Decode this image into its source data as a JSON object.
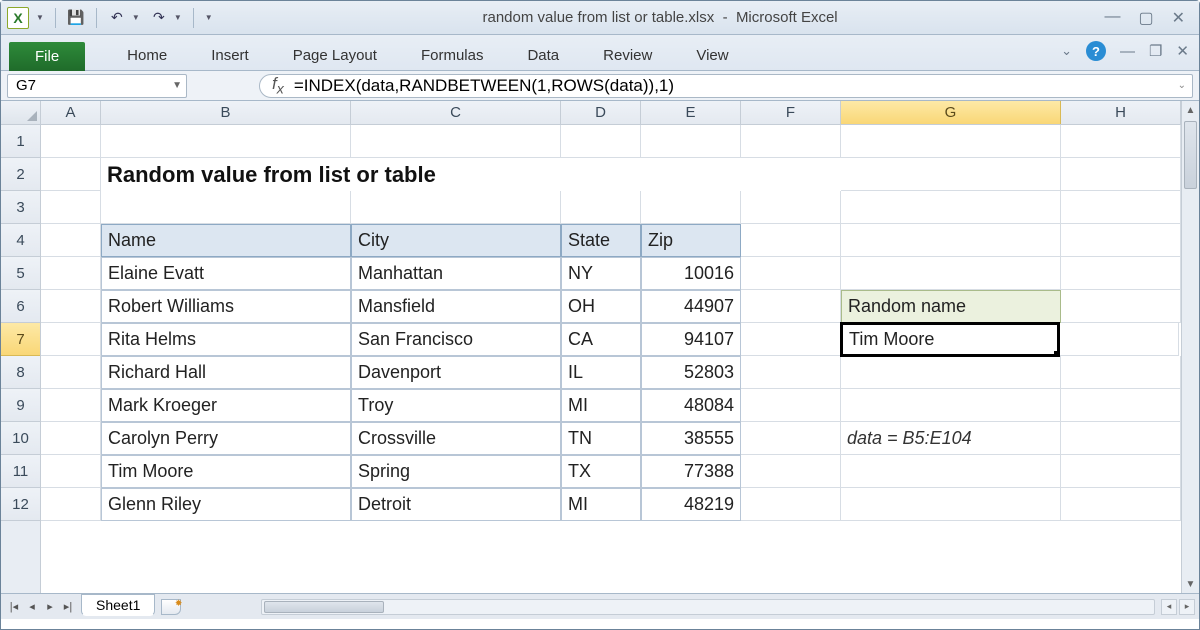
{
  "app": {
    "title_file": "random value from list or table.xlsx",
    "title_app": "Microsoft Excel"
  },
  "ribbon": {
    "file": "File",
    "tabs": [
      "Home",
      "Insert",
      "Page Layout",
      "Formulas",
      "Data",
      "Review",
      "View"
    ]
  },
  "namebox": "G7",
  "formula": "=INDEX(data,RANDBETWEEN(1,ROWS(data)),1)",
  "columns": [
    "A",
    "B",
    "C",
    "D",
    "E",
    "F",
    "G",
    "H"
  ],
  "col_widths": {
    "A": 60,
    "B": 250,
    "C": 210,
    "D": 80,
    "E": 100,
    "F": 100,
    "G": 220,
    "H": 120
  },
  "selected": {
    "col": "G",
    "row": 7
  },
  "visible_row_count": 12,
  "sheet_title": "Random value from list or table",
  "table": {
    "headers": [
      "Name",
      "City",
      "State",
      "Zip"
    ],
    "rows": [
      [
        "Elaine Evatt",
        "Manhattan",
        "NY",
        "10016"
      ],
      [
        "Robert Williams",
        "Mansfield",
        "OH",
        "44907"
      ],
      [
        "Rita Helms",
        "San Francisco",
        "CA",
        "94107"
      ],
      [
        "Richard Hall",
        "Davenport",
        "IL",
        "52803"
      ],
      [
        "Mark Kroeger",
        "Troy",
        "MI",
        "48084"
      ],
      [
        "Carolyn Perry",
        "Crossville",
        "TN",
        "38555"
      ],
      [
        "Tim Moore",
        "Spring",
        "TX",
        "77388"
      ],
      [
        "Glenn Riley",
        "Detroit",
        "MI",
        "48219"
      ]
    ],
    "header_bg": "#dce6f1",
    "header_border": "#8da9c4",
    "cell_border": "#b8c6d6"
  },
  "side": {
    "label": "Random name",
    "value": "Tim Moore",
    "note": "data = B5:E104",
    "label_bg": "#ebf1de",
    "label_border": "#a9bb8a"
  },
  "sheets": [
    "Sheet1"
  ],
  "colors": {
    "window_border": "#6b8399",
    "titlebar_bg_top": "#e8eef5",
    "titlebar_bg_bottom": "#d9e3ee",
    "header_bg_top": "#eef2f7",
    "header_bg_bottom": "#e4e9f0",
    "header_border": "#c5cdd6",
    "sel_hdr_top": "#fde9a6",
    "sel_hdr_bottom": "#f9d777",
    "gridline": "#d7dde4",
    "file_tab_top": "#2e8b3a",
    "file_tab_bottom": "#1f6b2a"
  }
}
